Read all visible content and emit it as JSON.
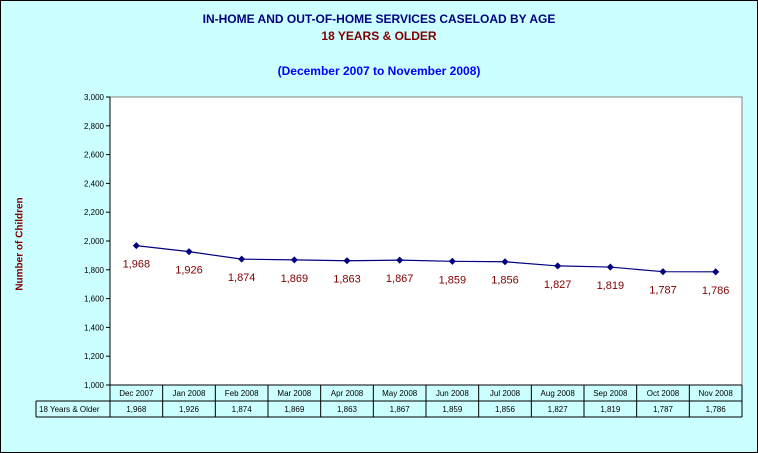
{
  "title": "IN-HOME AND OUT-OF-HOME SERVICES CASELOAD BY AGE",
  "subtitle": "18 YEARS & OLDER",
  "period": "(December 2007 to November 2008)",
  "ylabel": "Number of Children",
  "colors": {
    "background": "#ccffff",
    "plot_area": "#ffffff",
    "line": "#000080",
    "marker": "#000080",
    "data_label": "#800000"
  },
  "chart_data": {
    "type": "line",
    "title": "IN-HOME AND OUT-OF-HOME SERVICES CASELOAD BY AGE",
    "subtitle": "18 YEARS & OLDER",
    "ylabel": "Number of Children",
    "xlabel": "",
    "ylim": [
      1000,
      3000
    ],
    "yticks": [
      "1,000",
      "1,200",
      "1,400",
      "1,600",
      "1,800",
      "2,000",
      "2,200",
      "2,400",
      "2,600",
      "2,800",
      "3,000"
    ],
    "grid": false,
    "categories": [
      "Dec 2007",
      "Jan 2008",
      "Feb 2008",
      "Mar 2008",
      "Apr 2008",
      "May 2008",
      "Jun 2008",
      "Jul 2008",
      "Aug 2008",
      "Sep 2008",
      "Oct 2008",
      "Nov 2008"
    ],
    "series": [
      {
        "name": "18 Years & Older",
        "values": [
          1968,
          1926,
          1874,
          1869,
          1863,
          1867,
          1859,
          1856,
          1827,
          1819,
          1787,
          1786
        ],
        "labels": [
          "1,968",
          "1,926",
          "1,874",
          "1,869",
          "1,863",
          "1,867",
          "1,859",
          "1,856",
          "1,827",
          "1,819",
          "1,787",
          "1,786"
        ]
      }
    ]
  }
}
